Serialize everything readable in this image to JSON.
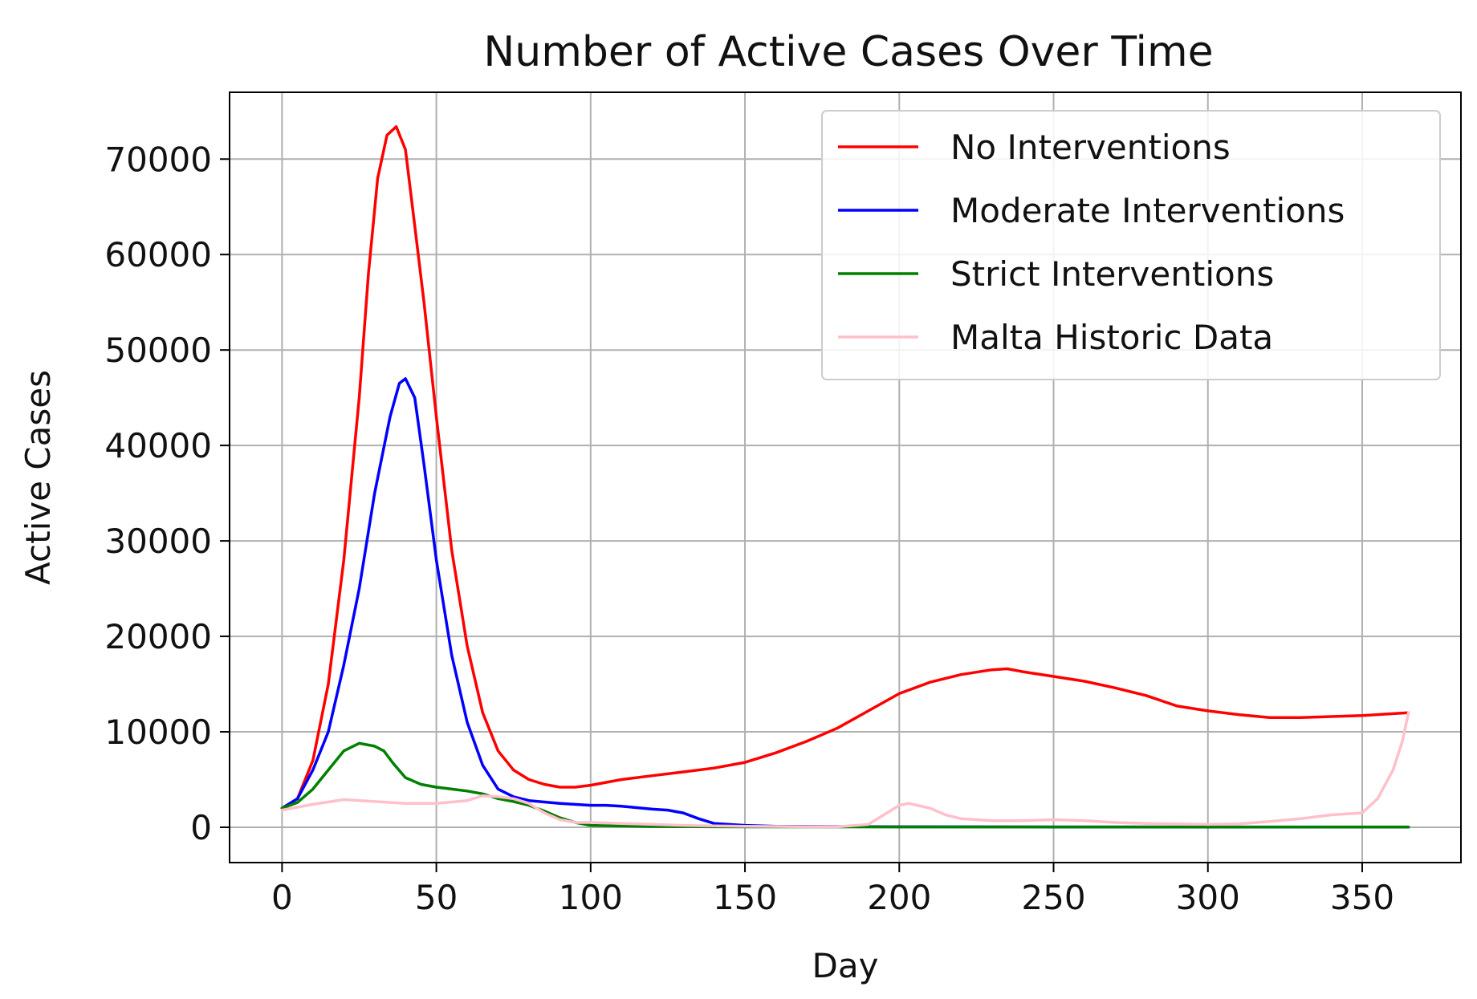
{
  "chart_data": {
    "type": "line",
    "title": "Number of Active Cases Over Time",
    "xlabel": "Day",
    "ylabel": "Active Cases",
    "xlim": [
      -17,
      382
    ],
    "ylim": [
      -3700,
      77000
    ],
    "xticks": [
      0,
      50,
      100,
      150,
      200,
      250,
      300,
      350
    ],
    "yticks": [
      0,
      10000,
      20000,
      30000,
      40000,
      50000,
      60000,
      70000
    ],
    "xtick_labels": [
      "0",
      "50",
      "100",
      "150",
      "200",
      "250",
      "300",
      "350"
    ],
    "ytick_labels": [
      "0",
      "10000",
      "20000",
      "30000",
      "40000",
      "50000",
      "60000",
      "70000"
    ],
    "grid": true,
    "legend_position": "top-right",
    "series": [
      {
        "name": "No Interventions",
        "color": "#ff0000",
        "x": [
          0,
          5,
          10,
          15,
          20,
          25,
          28,
          31,
          34,
          37,
          40,
          43,
          46,
          50,
          55,
          60,
          65,
          70,
          75,
          80,
          85,
          90,
          95,
          100,
          110,
          120,
          130,
          140,
          150,
          160,
          170,
          180,
          190,
          200,
          210,
          220,
          230,
          235,
          240,
          250,
          260,
          270,
          280,
          290,
          300,
          310,
          320,
          330,
          340,
          350,
          360,
          365
        ],
        "y": [
          2000,
          3000,
          7000,
          15000,
          28000,
          45000,
          58000,
          68000,
          72500,
          73400,
          71000,
          63000,
          55000,
          43000,
          29000,
          19000,
          12000,
          8000,
          6000,
          5000,
          4500,
          4200,
          4200,
          4400,
          5000,
          5400,
          5800,
          6200,
          6800,
          7800,
          9000,
          10400,
          12200,
          14000,
          15200,
          16000,
          16500,
          16600,
          16300,
          15800,
          15300,
          14600,
          13800,
          12700,
          12200,
          11800,
          11500,
          11500,
          11600,
          11700,
          11900,
          12000
        ]
      },
      {
        "name": "Moderate Interventions",
        "color": "#0000ff",
        "x": [
          0,
          5,
          10,
          15,
          20,
          25,
          30,
          35,
          38,
          40,
          43,
          46,
          50,
          55,
          60,
          65,
          70,
          75,
          80,
          90,
          100,
          105,
          110,
          120,
          125,
          130,
          135,
          140,
          150,
          160,
          200,
          250,
          300,
          365
        ],
        "y": [
          2000,
          3000,
          6000,
          10000,
          17000,
          25000,
          35000,
          43000,
          46500,
          47000,
          45000,
          38000,
          28000,
          18000,
          11000,
          6500,
          4000,
          3200,
          2800,
          2500,
          2300,
          2300,
          2200,
          1900,
          1800,
          1500,
          900,
          400,
          200,
          100,
          50,
          30,
          20,
          20
        ]
      },
      {
        "name": "Strict Interventions",
        "color": "#008000",
        "x": [
          0,
          5,
          10,
          15,
          20,
          25,
          30,
          33,
          36,
          40,
          45,
          50,
          55,
          60,
          65,
          70,
          75,
          80,
          85,
          90,
          95,
          100,
          120,
          150,
          200,
          250,
          300,
          365
        ],
        "y": [
          2000,
          2600,
          4000,
          6000,
          8000,
          8800,
          8500,
          8000,
          6700,
          5200,
          4500,
          4200,
          4000,
          3800,
          3500,
          3000,
          2700,
          2300,
          1700,
          1000,
          500,
          200,
          80,
          40,
          30,
          30,
          30,
          30
        ]
      },
      {
        "name": "Malta Historic Data",
        "color": "#ffc0cb",
        "x": [
          0,
          10,
          20,
          30,
          40,
          50,
          60,
          65,
          70,
          75,
          80,
          85,
          90,
          95,
          100,
          110,
          120,
          130,
          140,
          150,
          160,
          170,
          180,
          190,
          195,
          200,
          203,
          210,
          215,
          220,
          230,
          240,
          250,
          260,
          270,
          280,
          290,
          300,
          310,
          320,
          330,
          340,
          350,
          355,
          360,
          363,
          365
        ],
        "y": [
          1800,
          2400,
          2900,
          2700,
          2500,
          2500,
          2800,
          3300,
          3200,
          3000,
          2500,
          1500,
          800,
          500,
          500,
          400,
          300,
          200,
          150,
          100,
          80,
          50,
          50,
          300,
          1300,
          2300,
          2500,
          2000,
          1300,
          900,
          700,
          700,
          800,
          700,
          500,
          400,
          350,
          300,
          350,
          600,
          900,
          1300,
          1500,
          3000,
          6000,
          9000,
          12000
        ]
      }
    ]
  }
}
